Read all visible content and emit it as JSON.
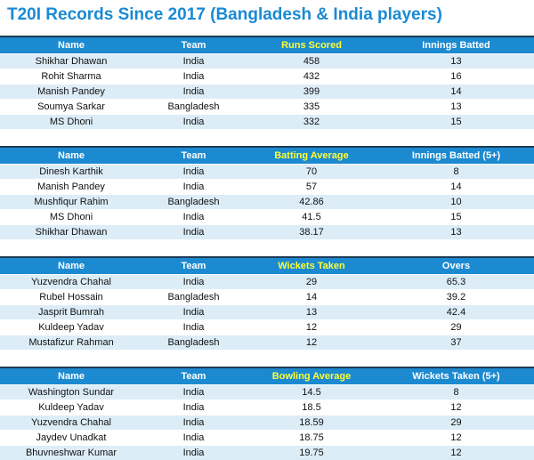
{
  "title": "T20I Records Since 2017 (Bangladesh & India players)",
  "tables": [
    {
      "header": [
        "Name",
        "Team",
        "Runs Scored",
        "Innings Batted"
      ],
      "rows": [
        [
          "Shikhar Dhawan",
          "India",
          458,
          13
        ],
        [
          "Rohit Sharma",
          "India",
          432,
          16
        ],
        [
          "Manish Pandey",
          "India",
          399,
          14
        ],
        [
          "Soumya Sarkar",
          "Bangladesh",
          335,
          13
        ],
        [
          "MS Dhoni",
          "India",
          332,
          15
        ]
      ]
    },
    {
      "header": [
        "Name",
        "Team",
        "Batting Average",
        "Innings Batted (5+)"
      ],
      "rows": [
        [
          "Dinesh Karthik",
          "India",
          70,
          8
        ],
        [
          "Manish Pandey",
          "India",
          57,
          14
        ],
        [
          "Mushfiqur Rahim",
          "Bangladesh",
          42.86,
          10
        ],
        [
          "MS Dhoni",
          "India",
          41.5,
          15
        ],
        [
          "Shikhar Dhawan",
          "India",
          38.17,
          13
        ]
      ]
    },
    {
      "header": [
        "Name",
        "Team",
        "Wickets Taken",
        "Overs"
      ],
      "rows": [
        [
          "Yuzvendra Chahal",
          "India",
          29,
          65.3
        ],
        [
          "Rubel Hossain",
          "Bangladesh",
          14,
          39.2
        ],
        [
          "Jasprit Bumrah",
          "India",
          13,
          42.4
        ],
        [
          "Kuldeep Yadav",
          "India",
          12,
          29
        ],
        [
          "Mustafizur Rahman",
          "Bangladesh",
          12,
          37
        ]
      ]
    },
    {
      "header": [
        "Name",
        "Team",
        "Bowling Average",
        "Wickets Taken (5+)"
      ],
      "rows": [
        [
          "Washington Sundar",
          "India",
          14.5,
          8
        ],
        [
          "Kuldeep Yadav",
          "India",
          18.5,
          12
        ],
        [
          "Yuzvendra Chahal",
          "India",
          18.59,
          29
        ],
        [
          "Jaydev Unadkat",
          "India",
          18.75,
          12
        ],
        [
          "Bhuvneshwar Kumar",
          "India",
          19.75,
          12
        ]
      ]
    }
  ]
}
